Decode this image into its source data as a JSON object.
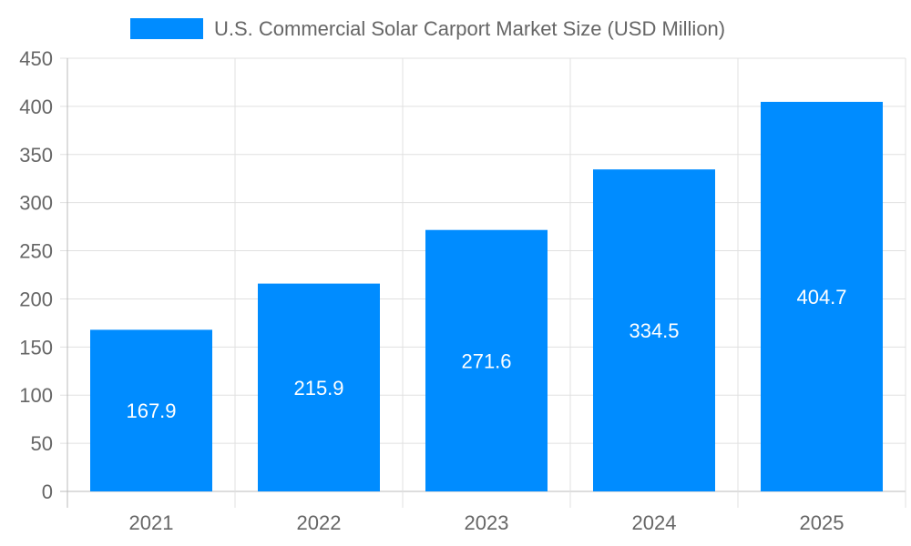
{
  "chart_data": {
    "type": "bar",
    "categories": [
      "2021",
      "2022",
      "2023",
      "2024",
      "2025"
    ],
    "series": [
      {
        "name": "U.S. Commercial Solar Carport Market Size (USD Million)",
        "values": [
          167.9,
          215.9,
          271.6,
          334.5,
          404.7
        ]
      }
    ],
    "data_labels": [
      "167.9",
      "215.9",
      "271.6",
      "334.5",
      "404.7"
    ],
    "title": "",
    "xlabel": "",
    "ylabel": "",
    "ylim": [
      0,
      450
    ],
    "yticks": [
      "0",
      "50",
      "100",
      "150",
      "200",
      "250",
      "300",
      "350",
      "400",
      "450"
    ],
    "grid": true,
    "legend_position": "top",
    "colors": {
      "bar": "#008cff",
      "grid": "#e0e0e0",
      "axis": "#666666",
      "label": "#ffffff",
      "text": "#666666"
    }
  }
}
